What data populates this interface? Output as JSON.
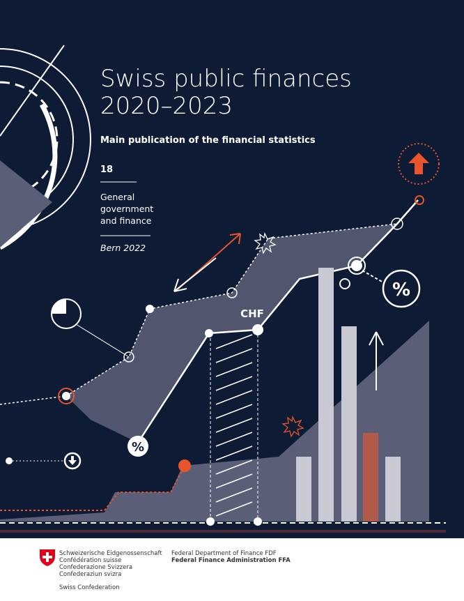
{
  "header": {
    "title_lines": [
      "Swiss public finances",
      "2020–2023"
    ],
    "subtitle": "Main publication of the financial statistics",
    "number": "18",
    "series_lines": [
      "General",
      "government",
      "and finance"
    ],
    "place_date": "Bern 2022"
  },
  "graphic": {
    "labels": {
      "chf": "CHF",
      "percent_1": "%",
      "percent_2": "%"
    }
  },
  "footer": {
    "languages": [
      "Schweizerische Eidgenossenschaft",
      "Confédération suisse",
      "Confederazione Svizzera",
      "Confederaziun svizra"
    ],
    "short_name": "Swiss Confederation",
    "department": "Federal Department of Finance FDF",
    "administration": "Federal Finance Administration FFA"
  }
}
